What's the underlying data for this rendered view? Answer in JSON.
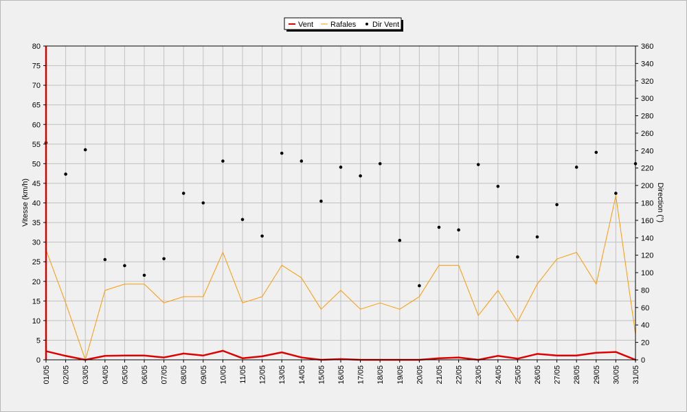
{
  "chart_data": {
    "type": "line",
    "categories": [
      "01/05",
      "02/05",
      "03/05",
      "04/05",
      "05/05",
      "06/05",
      "07/05",
      "08/05",
      "09/05",
      "10/05",
      "11/05",
      "12/05",
      "13/05",
      "14/05",
      "15/05",
      "16/05",
      "17/05",
      "18/05",
      "19/05",
      "20/05",
      "21/05",
      "22/05",
      "23/05",
      "24/05",
      "25/05",
      "26/05",
      "27/05",
      "28/05",
      "29/05",
      "30/05",
      "31/05"
    ],
    "ylabel_left": "Vitesse (km/h)",
    "ylabel_right": "Direction (°)",
    "ylim_left": [
      0,
      80
    ],
    "ylim_right": [
      0,
      360
    ],
    "yticks_left": [
      "0",
      "5",
      "10",
      "15",
      "20",
      "25",
      "30",
      "35",
      "40",
      "45",
      "50",
      "55",
      "60",
      "65",
      "70",
      "75",
      "80"
    ],
    "yticks_right": [
      "0",
      "20",
      "40",
      "60",
      "80",
      "100",
      "120",
      "140",
      "160",
      "180",
      "200",
      "220",
      "240",
      "260",
      "280",
      "300",
      "320",
      "340",
      "360"
    ],
    "grid": true,
    "legend_position": "top-center",
    "series": [
      {
        "name": "Vent",
        "kind": "line",
        "axis": "left",
        "color": "#dd0000",
        "values": [
          2.2,
          1.0,
          0.0,
          1.0,
          1.1,
          1.1,
          0.6,
          1.6,
          1.1,
          2.3,
          0.4,
          0.9,
          1.9,
          0.6,
          0.0,
          0.2,
          0.0,
          0.0,
          0.0,
          0.0,
          0.4,
          0.6,
          0.0,
          1.0,
          0.3,
          1.5,
          1.1,
          1.1,
          1.8,
          2.0,
          0.0
        ]
      },
      {
        "name": "Rafales",
        "kind": "line",
        "axis": "left",
        "color": "#ff9900",
        "values": [
          28,
          14.5,
          0,
          17.7,
          19.3,
          19.3,
          14.5,
          16.1,
          16.1,
          27.4,
          14.5,
          16.1,
          24.1,
          20.9,
          12.9,
          17.7,
          12.9,
          14.5,
          12.9,
          16.1,
          24.1,
          24.1,
          11.3,
          17.7,
          9.7,
          19.3,
          25.7,
          27.4,
          19.3,
          41.8,
          6.5
        ]
      },
      {
        "name": "Dir Vent",
        "kind": "scatter",
        "axis": "right",
        "color": "#000000",
        "values": [
          249,
          213,
          241,
          115,
          108,
          97,
          116,
          191,
          180,
          228,
          161,
          142,
          237,
          228,
          182,
          221,
          211,
          225,
          137,
          85,
          152,
          149,
          224,
          199,
          118,
          141,
          178,
          221,
          238,
          191,
          225
        ]
      }
    ]
  }
}
